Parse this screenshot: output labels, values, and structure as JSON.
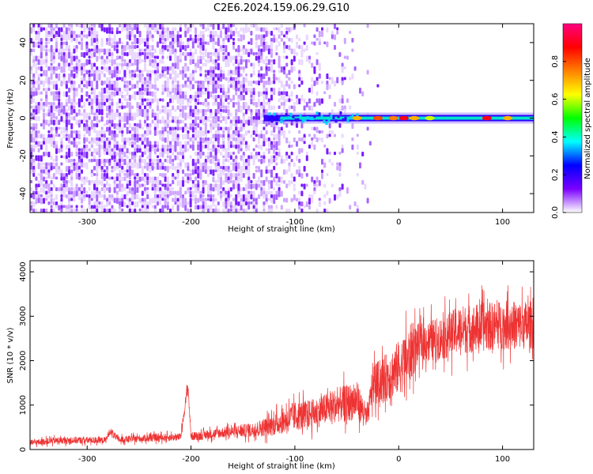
{
  "figure_title": "C2E6.2024.159.06.29.G10",
  "chart_data": [
    {
      "type": "heatmap",
      "title": "",
      "xlabel": "Height of straight line (km)",
      "ylabel": "Frequency (Hz)",
      "xlim": [
        -355,
        130
      ],
      "ylim": [
        -50,
        50
      ],
      "x_ticks": [
        -300,
        -200,
        -100,
        0,
        100
      ],
      "y_ticks": [
        -40,
        -20,
        0,
        20,
        40
      ],
      "grid": false,
      "colorbar": {
        "label": "Normalized spectral amplitude",
        "range": [
          0.0,
          1.0
        ],
        "ticks": [
          0.0,
          0.2,
          0.4,
          0.6,
          0.8
        ],
        "colormap": [
          "#ffffff",
          "#7a00ff",
          "#0000ff",
          "#00ffff",
          "#00ff00",
          "#ffff00",
          "#ff8000",
          "#ff0000",
          "#ff0080"
        ]
      },
      "noise_region_x": [
        -355,
        -35
      ],
      "signal_start_x": -130,
      "signal_line_hz": 0,
      "peaks": [
        {
          "x": -40,
          "amplitude": 0.7
        },
        {
          "x": -20,
          "amplitude": 0.8
        },
        {
          "x": -5,
          "amplitude": 0.75
        },
        {
          "x": 5,
          "amplitude": 0.9
        },
        {
          "x": 15,
          "amplitude": 0.7
        },
        {
          "x": 30,
          "amplitude": 0.6
        },
        {
          "x": 85,
          "amplitude": 0.9
        },
        {
          "x": 105,
          "amplitude": 0.7
        }
      ]
    },
    {
      "type": "line",
      "title": "",
      "xlabel": "Height of straight line (km)",
      "ylabel": "SNR (10 * v/v)",
      "xlim": [
        -355,
        130
      ],
      "ylim": [
        0,
        4250
      ],
      "x_ticks": [
        -300,
        -200,
        -100,
        0,
        100
      ],
      "y_ticks": [
        0,
        1000,
        2000,
        3000,
        4000
      ],
      "grid": false,
      "series": [
        {
          "color": "#ee3333",
          "x": [
            -355,
            -330,
            -300,
            -282,
            -278,
            -270,
            -240,
            -210,
            -203,
            -200,
            -195,
            -170,
            -140,
            -120,
            -100,
            -80,
            -60,
            -40,
            -30,
            -25,
            -20,
            -10,
            0,
            8,
            12,
            20,
            40,
            60,
            80,
            100,
            130
          ],
          "mid": [
            150,
            200,
            210,
            210,
            420,
            220,
            260,
            280,
            1450,
            300,
            300,
            380,
            440,
            560,
            750,
            820,
            1000,
            1100,
            700,
            1500,
            1500,
            1650,
            1850,
            2000,
            2200,
            2400,
            2500,
            2700,
            2750,
            2800,
            2800
          ],
          "amp": [
            120,
            140,
            140,
            130,
            150,
            140,
            150,
            160,
            250,
            170,
            180,
            220,
            300,
            450,
            600,
            600,
            700,
            800,
            400,
            900,
            900,
            1000,
            1100,
            1200,
            1200,
            800,
            900,
            1000,
            1000,
            1000,
            1000
          ]
        }
      ]
    }
  ]
}
